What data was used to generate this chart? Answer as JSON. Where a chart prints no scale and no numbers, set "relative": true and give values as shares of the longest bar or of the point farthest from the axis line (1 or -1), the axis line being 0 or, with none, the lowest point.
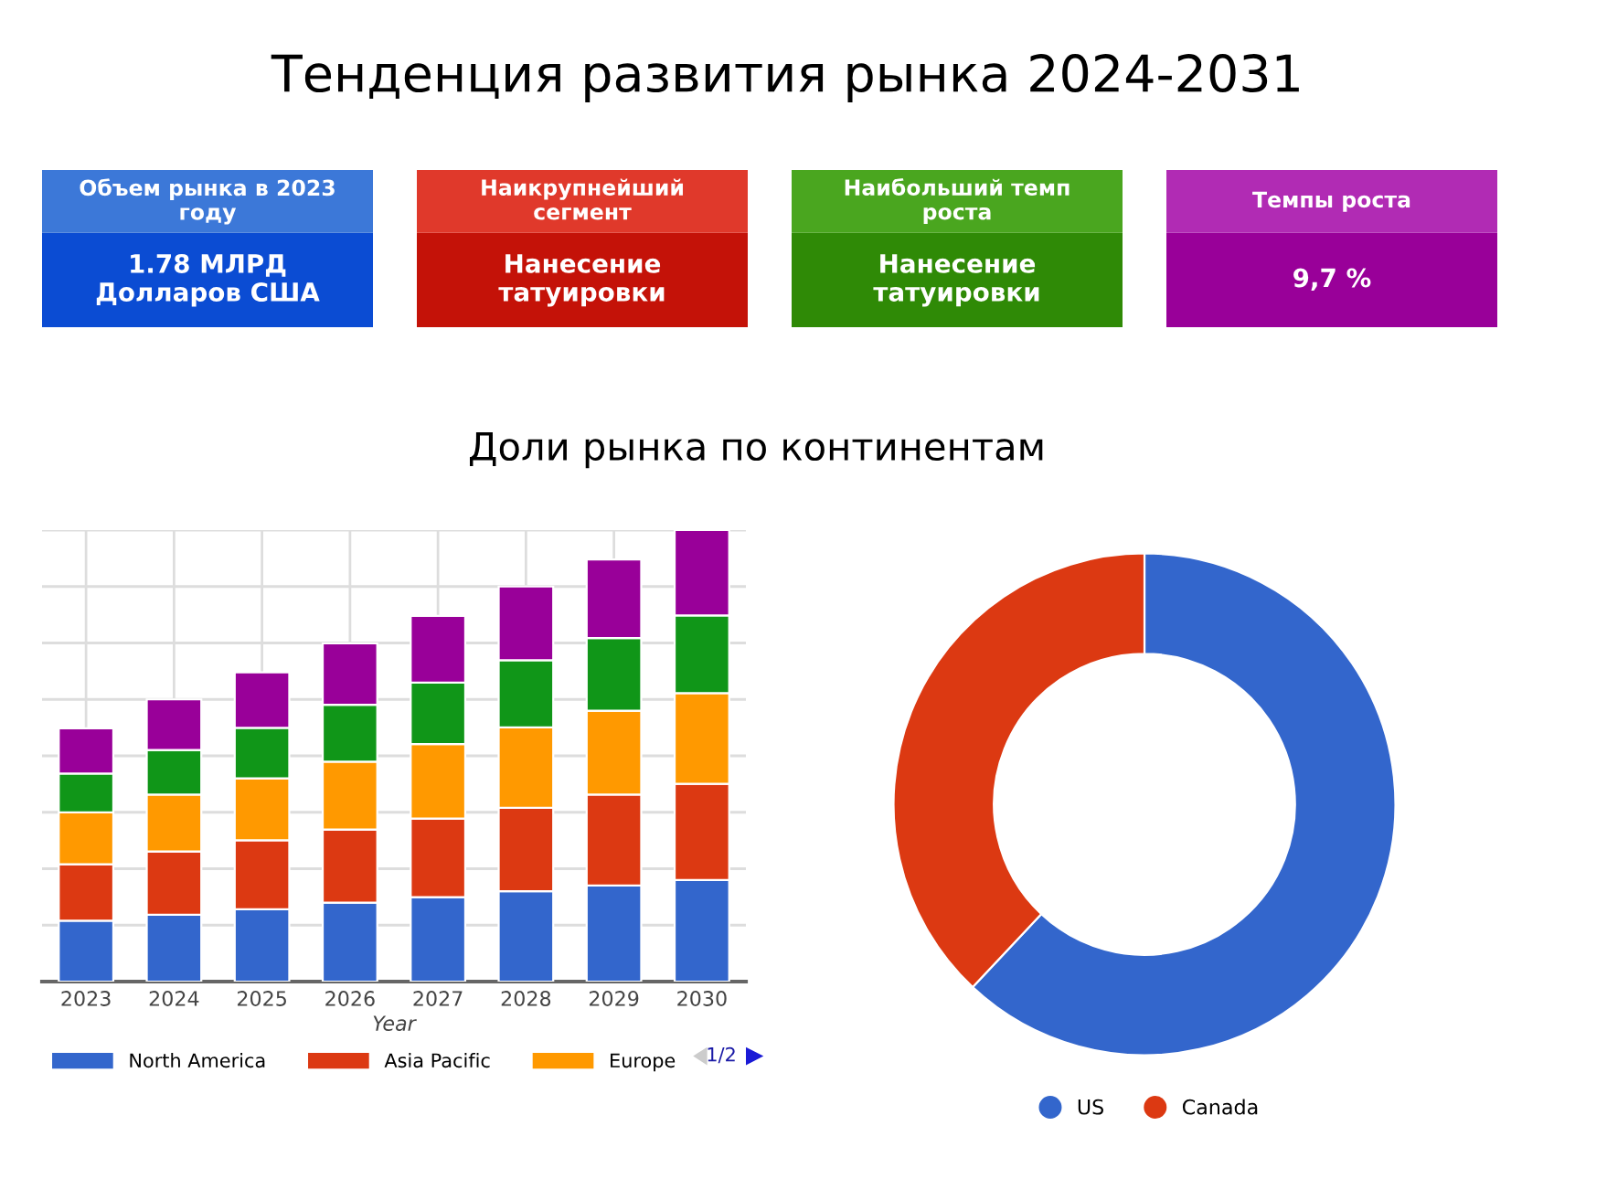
{
  "chart_data": [
    {
      "type": "other",
      "title": "Тенденция развития рынка 2024-2031"
    },
    {
      "type": "other",
      "title": "Объем рынка в 2023 году",
      "annotations": [
        "1.78 МЛРД Долларов США"
      ],
      "colors": [
        "#3c78d8",
        "#0b4cd3"
      ]
    },
    {
      "type": "other",
      "title": "Наикрупнейший сегмент",
      "annotations": [
        "Нанесение татуировки"
      ],
      "colors": [
        "#e0392b",
        "#c41208"
      ]
    },
    {
      "type": "other",
      "title": "Наибольший темп роста",
      "annotations": [
        "Нанесение татуировки"
      ],
      "colors": [
        "#4aa61f",
        "#2f8a06"
      ]
    },
    {
      "type": "other",
      "title": "Темпы роста",
      "annotations": [
        "9,7 %"
      ],
      "colors": [
        "#b12bb4",
        "#990099"
      ]
    },
    {
      "type": "bar",
      "title": "Доли рынка по континентам",
      "xlabel": "Year",
      "stacked": true,
      "relative": true,
      "grid": true,
      "legend": "bottom",
      "tick_labels": "x",
      "categories": [
        "2023",
        "2024",
        "2025",
        "2026",
        "2027",
        "2028",
        "2029",
        "2030"
      ],
      "series": [
        {
          "name": "North America",
          "color": "#3366cc",
          "values": [
            0.135,
            0.148,
            0.16,
            0.175,
            0.187,
            0.2,
            0.213,
            0.225
          ]
        },
        {
          "name": "Asia Pacific",
          "color": "#dc3912",
          "values": [
            0.125,
            0.14,
            0.153,
            0.162,
            0.174,
            0.185,
            0.201,
            0.213
          ]
        },
        {
          "name": "Europe",
          "color": "#ff9900",
          "values": [
            0.115,
            0.126,
            0.137,
            0.15,
            0.165,
            0.178,
            0.186,
            0.201
          ]
        },
        {
          "color": "#109618",
          "values": [
            0.086,
            0.099,
            0.112,
            0.126,
            0.136,
            0.149,
            0.161,
            0.172
          ]
        },
        {
          "color": "#990099",
          "values": [
            0.1,
            0.112,
            0.123,
            0.136,
            0.148,
            0.163,
            0.174,
            0.189
          ]
        }
      ],
      "annotations": [
        "1/2"
      ]
    },
    {
      "type": "donut",
      "categories": [
        "US",
        "Canada"
      ],
      "values": [
        62,
        38
      ],
      "colors": [
        "#3366cc",
        "#dc3912"
      ],
      "legend": "bottom"
    }
  ]
}
